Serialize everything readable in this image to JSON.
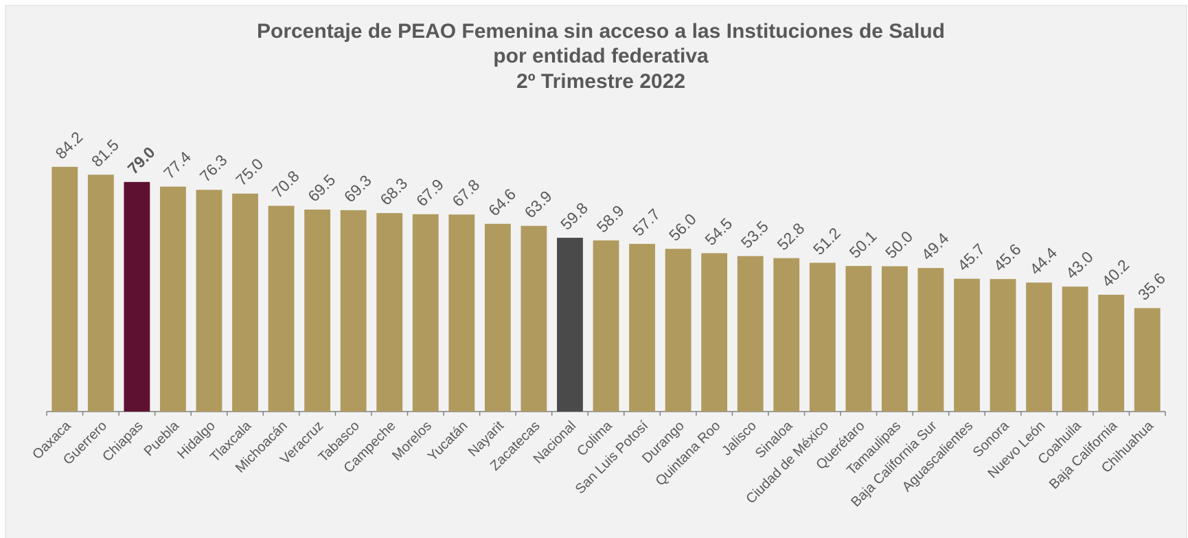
{
  "chart_data": {
    "type": "bar",
    "title": [
      "Porcentaje de PEAO Femenina sin acceso a las Instituciones de Salud",
      "por entidad federativa",
      "2º Trimestre 2022"
    ],
    "categories": [
      "Oaxaca",
      "Guerrero",
      "Chiapas",
      "Puebla",
      "Hidalgo",
      "Tlaxcala",
      "Michoacán",
      "Veracruz",
      "Tabasco",
      "Campeche",
      "Morelos",
      "Yucatán",
      "Nayarit",
      "Zacatecas",
      "Nacional",
      "Colima",
      "San Luis Potosí",
      "Durango",
      "Quintana Roo",
      "Jalisco",
      "Sinaloa",
      "Ciudad de México",
      "Querétaro",
      "Tamaulipas",
      "Baja California Sur",
      "Aguascalientes",
      "Sonora",
      "Nuevo León",
      "Coahuila",
      "Baja California",
      "Chihuahua"
    ],
    "values": [
      84.2,
      81.5,
      79.0,
      77.4,
      76.3,
      75.0,
      70.8,
      69.5,
      69.3,
      68.3,
      67.9,
      67.8,
      64.6,
      63.9,
      59.8,
      58.9,
      57.7,
      56.0,
      54.5,
      53.5,
      52.8,
      51.2,
      50.1,
      50.0,
      49.4,
      45.7,
      45.6,
      44.4,
      43.0,
      40.2,
      35.6
    ],
    "value_labels": [
      "84.2",
      "81.5",
      "79.0",
      "77.4",
      "76.3",
      "75.0",
      "70.8",
      "69.5",
      "69.3",
      "68.3",
      "67.9",
      "67.8",
      "64.6",
      "63.9",
      "59.8",
      "58.9",
      "57.7",
      "56.0",
      "54.5",
      "53.5",
      "52.8",
      "51.2",
      "50.1",
      "50.0",
      "49.4",
      "45.7",
      "45.6",
      "44.4",
      "43.0",
      "40.2",
      "35.6"
    ],
    "color": "#b09a5e",
    "colors": [
      "#b09a5e",
      "#b09a5e",
      "#5f1132",
      "#b09a5e",
      "#b09a5e",
      "#b09a5e",
      "#b09a5e",
      "#b09a5e",
      "#b09a5e",
      "#b09a5e",
      "#b09a5e",
      "#b09a5e",
      "#b09a5e",
      "#b09a5e",
      "#4a4a4a",
      "#b09a5e",
      "#b09a5e",
      "#b09a5e",
      "#b09a5e",
      "#b09a5e",
      "#b09a5e",
      "#b09a5e",
      "#b09a5e",
      "#b09a5e",
      "#b09a5e",
      "#b09a5e",
      "#b09a5e",
      "#b09a5e",
      "#b09a5e",
      "#b09a5e",
      "#b09a5e"
    ],
    "emphasis": "Chiapas",
    "ylim": [
      0,
      100
    ]
  }
}
